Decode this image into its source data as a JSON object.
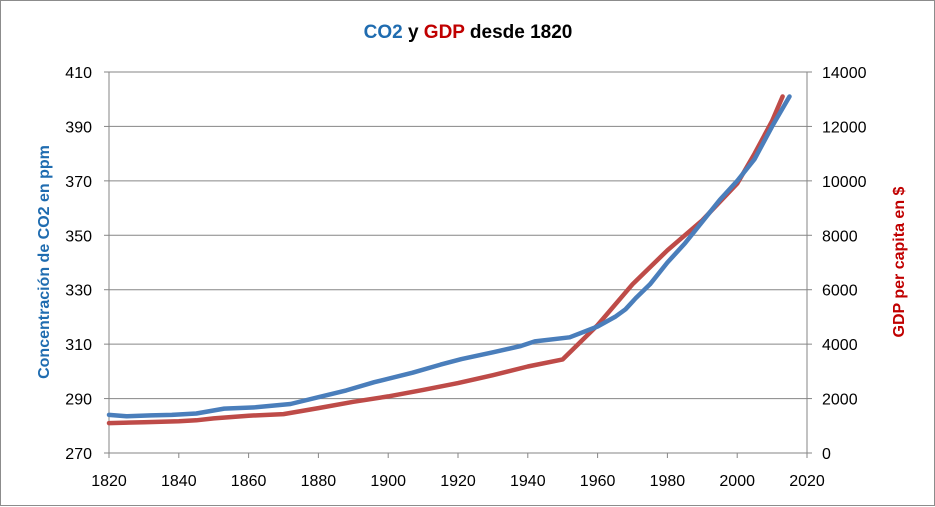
{
  "chart_data": {
    "type": "line",
    "title": {
      "part1": "CO2",
      "part2": " y ",
      "part3": "GDP",
      "part4": " desde 1820"
    },
    "xlabel": "",
    "ylabel_left": "Concentración de CO2 en ppm",
    "ylabel_right": "GDP per capita en $",
    "xlim": [
      1820,
      2020
    ],
    "ylim_left": [
      270,
      410
    ],
    "ylim_right": [
      0,
      14000
    ],
    "x_ticks": [
      1820,
      1840,
      1860,
      1880,
      1900,
      1920,
      1940,
      1960,
      1980,
      2000,
      2020
    ],
    "y_ticks_left": [
      270,
      290,
      310,
      330,
      350,
      370,
      390,
      410
    ],
    "y_ticks_right": [
      0,
      2000,
      4000,
      6000,
      8000,
      10000,
      12000,
      14000
    ],
    "grid": true,
    "colors": {
      "co2": "#4a7ebb",
      "gdp": "#be4b48",
      "title_co2": "#1f6cb0",
      "title_gdp": "#c00000",
      "grid": "#868686"
    },
    "series": [
      {
        "name": "CO2",
        "axis": "left",
        "x": [
          1820,
          1825,
          1832,
          1838,
          1845,
          1853,
          1862,
          1872,
          1880,
          1888,
          1896,
          1907,
          1915,
          1921,
          1930,
          1938,
          1942,
          1952,
          1960,
          1965,
          1968,
          1971,
          1975,
          1980,
          1985,
          1990,
          1995,
          2000,
          2005,
          2010,
          2015
        ],
        "values": [
          284,
          283.5,
          283.8,
          284,
          284.5,
          286.3,
          286.8,
          288,
          290.5,
          293,
          296,
          299.5,
          302.5,
          304.5,
          307,
          309.3,
          311,
          312.5,
          316.5,
          320,
          322.8,
          327,
          332,
          340,
          347,
          355,
          363,
          370,
          378,
          390,
          401
        ]
      },
      {
        "name": "GDP",
        "axis": "right",
        "x": [
          1820,
          1830,
          1840,
          1845,
          1850,
          1860,
          1870,
          1880,
          1890,
          1900,
          1910,
          1920,
          1930,
          1940,
          1950,
          1960,
          1970,
          1980,
          1990,
          2000,
          2005,
          2010,
          2013
        ],
        "values": [
          1100,
          1130,
          1170,
          1200,
          1270,
          1370,
          1430,
          1650,
          1880,
          2080,
          2320,
          2570,
          2860,
          3180,
          3440,
          4700,
          6200,
          7450,
          8550,
          9900,
          11000,
          12200,
          13100
        ]
      }
    ]
  }
}
